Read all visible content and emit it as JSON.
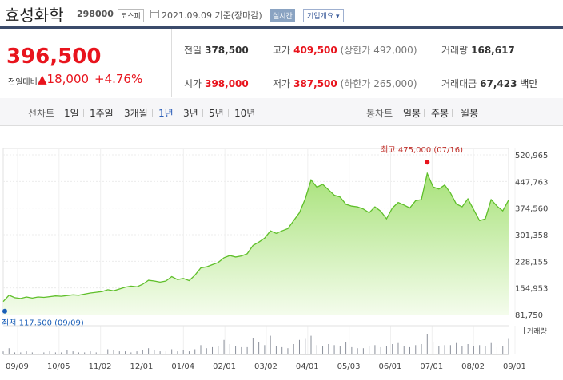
{
  "header": {
    "company": "효성화학",
    "code": "298000",
    "market": "코스피",
    "date": "2021.09.09 기준(장마감)",
    "realtime": "실시간",
    "info_dropdown": "기업개요"
  },
  "quote": {
    "price": "396,500",
    "change_label": "전일대비",
    "change": "18,000",
    "change_pct": "+4.76%",
    "prev_label": "전일",
    "prev": "378,500",
    "high_label": "고가",
    "high": "409,500",
    "upper_limit": "(상한가 492,000)",
    "volume_label": "거래량",
    "volume": "168,617",
    "open_label": "시가",
    "open": "398,000",
    "low_label": "저가",
    "low": "387,500",
    "lower_limit": "(하한가 265,000)",
    "amount_label": "거래대금",
    "amount": "67,423",
    "amount_unit": "백만",
    "up_color": "#e8141d"
  },
  "tabs": {
    "line_chart": "선차트",
    "periods": [
      "1일",
      "1주일",
      "3개월",
      "1년",
      "3년",
      "5년",
      "10년"
    ],
    "active_period": "1년",
    "candle_chart": "봉차트",
    "candle_periods": [
      "일봉",
      "주봉",
      "월봉"
    ]
  },
  "chart_data": {
    "type": "area",
    "y_ticks": [
      520965,
      447763,
      374560,
      301358,
      228155,
      154953,
      81750
    ],
    "ylim": [
      81750,
      520965
    ],
    "x_tick_labels": [
      "09/09",
      "10/05",
      "11/02",
      "12/01",
      "01/04",
      "02/01",
      "03/02",
      "04/01",
      "05/03",
      "06/01",
      "07/01",
      "08/02",
      "09/01"
    ],
    "high_label": "최고 475,000 (07/16)",
    "low_label": "최저 117,500 (09/09)",
    "volume_label": "거래량",
    "series": [
      {
        "values": [
          117500,
          135000,
          128000,
          126000,
          130000,
          127000,
          130000,
          129000,
          131000,
          133000,
          132000,
          134000,
          136000,
          135000,
          138000,
          141000,
          143000,
          145000,
          150000,
          147000,
          152000,
          157000,
          160000,
          158000,
          165000,
          176000,
          174000,
          171000,
          174000,
          186000,
          178000,
          181000,
          175000,
          190000,
          210000,
          213000,
          219000,
          225000,
          238000,
          244000,
          240000,
          243000,
          249000,
          272000,
          281000,
          292000,
          312000,
          305000,
          312000,
          318000,
          340000,
          362000,
          400000,
          452000,
          432000,
          440000,
          425000,
          410000,
          405000,
          385000,
          380000,
          378000,
          372000,
          362000,
          378000,
          366000,
          345000,
          375000,
          390000,
          383000,
          375000,
          395000,
          398000,
          470000,
          433000,
          427000,
          438000,
          416000,
          386000,
          378000,
          400000,
          370000,
          340000,
          345000,
          398000,
          380000,
          367000,
          396500
        ]
      }
    ],
    "volume": [
      3,
      6,
      2,
      2,
      3,
      2,
      1,
      2,
      3,
      2,
      2,
      4,
      3,
      2,
      2,
      3,
      2,
      3,
      5,
      4,
      3,
      3,
      2,
      3,
      4,
      6,
      4,
      3,
      3,
      5,
      3,
      4,
      3,
      5,
      9,
      6,
      7,
      8,
      14,
      10,
      8,
      7,
      7,
      16,
      12,
      9,
      18,
      8,
      7,
      6,
      10,
      14,
      15,
      18,
      9,
      8,
      10,
      9,
      8,
      12,
      7,
      6,
      6,
      8,
      9,
      7,
      8,
      10,
      11,
      8,
      7,
      9,
      10,
      20,
      12,
      8,
      9,
      9,
      11,
      8,
      10,
      8,
      9,
      8,
      11,
      7,
      8,
      15
    ]
  }
}
